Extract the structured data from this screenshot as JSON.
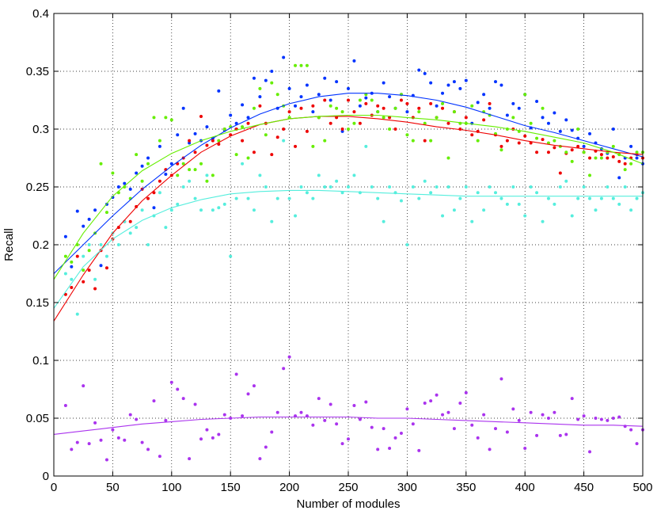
{
  "chart_data": {
    "type": "scatter",
    "title": "",
    "xlabel": "Number of modules",
    "ylabel": "Recall",
    "xlim": [
      0,
      500
    ],
    "ylim": [
      0,
      0.4
    ],
    "xticks": [
      "0",
      "50",
      "100",
      "150",
      "200",
      "250",
      "300",
      "350",
      "400",
      "450",
      "500"
    ],
    "yticks": [
      "0",
      "0.05",
      "0.1",
      "0.15",
      "0.2",
      "0.25",
      "0.3",
      "0.35",
      "0.4"
    ],
    "grid": true,
    "x": [
      10,
      15,
      20,
      25,
      30,
      35,
      40,
      45,
      50,
      55,
      60,
      65,
      70,
      75,
      80,
      85,
      90,
      95,
      100,
      105,
      110,
      115,
      120,
      125,
      130,
      135,
      140,
      145,
      150,
      155,
      160,
      165,
      170,
      175,
      180,
      185,
      190,
      195,
      200,
      205,
      210,
      215,
      220,
      225,
      230,
      235,
      240,
      245,
      250,
      255,
      260,
      265,
      270,
      275,
      280,
      285,
      290,
      295,
      300,
      305,
      310,
      315,
      320,
      325,
      330,
      335,
      340,
      345,
      350,
      355,
      360,
      365,
      370,
      375,
      380,
      385,
      390,
      395,
      400,
      405,
      410,
      415,
      420,
      425,
      430,
      435,
      440,
      445,
      450,
      455,
      460,
      465,
      470,
      475,
      480,
      485,
      490,
      495,
      500
    ],
    "series": [
      {
        "color": "#0033ff",
        "values": [
          0.207,
          0.181,
          0.229,
          0.216,
          0.222,
          0.23,
          0.182,
          0.235,
          0.241,
          0.25,
          0.253,
          0.248,
          0.262,
          0.268,
          0.275,
          0.232,
          0.285,
          0.261,
          0.27,
          0.295,
          0.318,
          0.288,
          0.296,
          0.29,
          0.302,
          0.292,
          0.333,
          0.299,
          0.312,
          0.305,
          0.321,
          0.31,
          0.344,
          0.328,
          0.342,
          0.35,
          0.318,
          0.362,
          0.335,
          0.32,
          0.328,
          0.338,
          0.315,
          0.33,
          0.344,
          0.325,
          0.341,
          0.298,
          0.335,
          0.359,
          0.32,
          0.327,
          0.331,
          0.315,
          0.34,
          0.328,
          0.318,
          0.33,
          0.315,
          0.329,
          0.351,
          0.348,
          0.34,
          0.32,
          0.331,
          0.338,
          0.341,
          0.335,
          0.342,
          0.305,
          0.323,
          0.33,
          0.318,
          0.341,
          0.338,
          0.312,
          0.322,
          0.318,
          0.33,
          0.301,
          0.324,
          0.31,
          0.305,
          0.314,
          0.298,
          0.308,
          0.299,
          0.292,
          0.285,
          0.296,
          0.288,
          0.283,
          0.279,
          0.3,
          0.258,
          0.275,
          0.285,
          0.275,
          0.27
        ]
      },
      {
        "color": "#ee0000",
        "values": [
          0.157,
          0.163,
          0.19,
          0.168,
          0.178,
          0.162,
          0.195,
          0.18,
          0.205,
          0.215,
          0.22,
          0.22,
          0.233,
          0.248,
          0.24,
          0.245,
          0.255,
          0.265,
          0.26,
          0.27,
          0.275,
          0.29,
          0.28,
          0.311,
          0.286,
          0.29,
          0.287,
          0.3,
          0.295,
          0.3,
          0.29,
          0.305,
          0.28,
          0.32,
          0.305,
          0.278,
          0.293,
          0.3,
          0.315,
          0.285,
          0.318,
          0.298,
          0.32,
          0.31,
          0.325,
          0.305,
          0.31,
          0.3,
          0.325,
          0.315,
          0.305,
          0.322,
          0.312,
          0.32,
          0.318,
          0.31,
          0.3,
          0.325,
          0.322,
          0.31,
          0.318,
          0.29,
          0.322,
          0.31,
          0.318,
          0.305,
          0.315,
          0.3,
          0.31,
          0.295,
          0.298,
          0.308,
          0.322,
          0.295,
          0.285,
          0.29,
          0.3,
          0.288,
          0.294,
          0.288,
          0.28,
          0.291,
          0.28,
          0.284,
          0.262,
          0.279,
          0.282,
          0.285,
          0.28,
          0.275,
          0.281,
          0.278,
          0.275,
          0.276,
          0.272,
          0.27,
          0.275,
          0.278,
          0.275
        ]
      },
      {
        "color": "#66ee00",
        "values": [
          0.19,
          0.185,
          0.2,
          0.178,
          0.195,
          0.21,
          0.27,
          0.228,
          0.262,
          0.245,
          0.25,
          0.24,
          0.278,
          0.255,
          0.27,
          0.31,
          0.29,
          0.31,
          0.308,
          0.26,
          0.27,
          0.265,
          0.265,
          0.27,
          0.255,
          0.26,
          0.29,
          0.3,
          0.302,
          0.278,
          0.302,
          0.275,
          0.318,
          0.335,
          0.295,
          0.34,
          0.33,
          0.32,
          0.31,
          0.355,
          0.355,
          0.355,
          0.285,
          0.31,
          0.29,
          0.32,
          0.318,
          0.315,
          0.3,
          0.305,
          0.325,
          0.33,
          0.325,
          0.315,
          0.31,
          0.3,
          0.318,
          0.33,
          0.295,
          0.29,
          0.315,
          0.305,
          0.29,
          0.31,
          0.322,
          0.275,
          0.315,
          0.305,
          0.305,
          0.32,
          0.29,
          0.315,
          0.312,
          0.296,
          0.282,
          0.3,
          0.31,
          0.298,
          0.33,
          0.305,
          0.292,
          0.318,
          0.288,
          0.29,
          0.285,
          0.28,
          0.272,
          0.3,
          0.28,
          0.26,
          0.275,
          0.275,
          0.28,
          0.285,
          0.278,
          0.265,
          0.27,
          0.28,
          0.28
        ]
      },
      {
        "color": "#55eedd",
        "values": [
          0.175,
          0.17,
          0.14,
          0.19,
          0.2,
          0.17,
          0.2,
          0.19,
          0.21,
          0.2,
          0.22,
          0.21,
          0.215,
          0.23,
          0.2,
          0.225,
          0.245,
          0.215,
          0.23,
          0.235,
          0.25,
          0.255,
          0.24,
          0.23,
          0.26,
          0.23,
          0.232,
          0.235,
          0.19,
          0.24,
          0.27,
          0.24,
          0.23,
          0.26,
          0.25,
          0.22,
          0.24,
          0.29,
          0.24,
          0.225,
          0.25,
          0.245,
          0.24,
          0.26,
          0.25,
          0.25,
          0.255,
          0.245,
          0.25,
          0.26,
          0.245,
          0.285,
          0.25,
          0.24,
          0.22,
          0.25,
          0.245,
          0.238,
          0.2,
          0.25,
          0.24,
          0.255,
          0.245,
          0.25,
          0.225,
          0.25,
          0.23,
          0.24,
          0.25,
          0.22,
          0.245,
          0.23,
          0.25,
          0.245,
          0.24,
          0.235,
          0.25,
          0.235,
          0.225,
          0.25,
          0.245,
          0.22,
          0.24,
          0.235,
          0.25,
          0.255,
          0.225,
          0.24,
          0.25,
          0.24,
          0.23,
          0.24,
          0.25,
          0.24,
          0.235,
          0.25,
          0.23,
          0.24,
          0.245
        ]
      },
      {
        "color": "#aa33ee",
        "values": [
          0.061,
          0.023,
          0.029,
          0.078,
          0.028,
          0.046,
          0.031,
          0.014,
          0.04,
          0.033,
          0.031,
          0.053,
          0.049,
          0.029,
          0.023,
          0.065,
          0.017,
          0.048,
          0.081,
          0.075,
          0.067,
          0.015,
          0.062,
          0.032,
          0.04,
          0.033,
          0.036,
          0.053,
          0.05,
          0.088,
          0.052,
          0.071,
          0.078,
          0.015,
          0.025,
          0.038,
          0.055,
          0.093,
          0.103,
          0.052,
          0.055,
          0.052,
          0.044,
          0.067,
          0.048,
          0.062,
          0.045,
          0.028,
          0.032,
          0.061,
          0.049,
          0.064,
          0.042,
          0.023,
          0.041,
          0.024,
          0.033,
          0.037,
          0.058,
          0.045,
          0.022,
          0.063,
          0.065,
          0.07,
          0.053,
          0.055,
          0.041,
          0.063,
          0.072,
          0.044,
          0.033,
          0.053,
          0.023,
          0.041,
          0.084,
          0.038,
          0.058,
          0.048,
          0.024,
          0.055,
          0.035,
          0.053,
          0.05,
          0.055,
          0.035,
          0.036,
          0.067,
          0.049,
          0.052,
          0.021,
          0.05,
          0.049,
          0.048,
          0.05,
          0.051,
          0.043,
          0.04,
          0.028,
          0.04
        ]
      }
    ],
    "fits": [
      {
        "color": "#0033ff",
        "x": [
          0,
          25,
          50,
          75,
          100,
          125,
          150,
          175,
          200,
          225,
          250,
          275,
          300,
          325,
          350,
          375,
          400,
          425,
          450,
          475,
          500
        ],
        "y": [
          0.175,
          0.2,
          0.225,
          0.248,
          0.268,
          0.286,
          0.301,
          0.313,
          0.322,
          0.328,
          0.331,
          0.331,
          0.329,
          0.325,
          0.319,
          0.311,
          0.303,
          0.297,
          0.29,
          0.283,
          0.276
        ]
      },
      {
        "color": "#ee0000",
        "x": [
          0,
          25,
          50,
          75,
          100,
          125,
          150,
          175,
          200,
          225,
          250,
          275,
          300,
          325,
          350,
          375,
          400,
          425,
          450,
          475,
          500
        ],
        "y": [
          0.134,
          0.174,
          0.21,
          0.238,
          0.26,
          0.28,
          0.294,
          0.304,
          0.309,
          0.311,
          0.311,
          0.309,
          0.306,
          0.302,
          0.299,
          0.295,
          0.29,
          0.286,
          0.283,
          0.28,
          0.278
        ]
      },
      {
        "color": "#66ee00",
        "x": [
          0,
          25,
          50,
          75,
          100,
          125,
          150,
          175,
          200,
          225,
          250,
          275,
          300,
          325,
          350,
          375,
          400,
          425,
          450,
          475,
          500
        ],
        "y": [
          0.17,
          0.21,
          0.242,
          0.264,
          0.279,
          0.29,
          0.298,
          0.304,
          0.309,
          0.311,
          0.312,
          0.312,
          0.31,
          0.308,
          0.305,
          0.302,
          0.298,
          0.293,
          0.288,
          0.28,
          0.27
        ]
      },
      {
        "color": "#55eedd",
        "x": [
          0,
          25,
          50,
          75,
          100,
          125,
          150,
          175,
          200,
          225,
          250,
          275,
          300,
          325,
          350,
          375,
          400,
          425,
          450,
          475,
          500
        ],
        "y": [
          0.145,
          0.181,
          0.205,
          0.221,
          0.232,
          0.239,
          0.244,
          0.246,
          0.247,
          0.247,
          0.246,
          0.245,
          0.244,
          0.243,
          0.242,
          0.242,
          0.242,
          0.242,
          0.242,
          0.242,
          0.242
        ]
      },
      {
        "color": "#aa33ee",
        "x": [
          0,
          25,
          50,
          75,
          100,
          125,
          150,
          175,
          200,
          225,
          250,
          275,
          300,
          325,
          350,
          375,
          400,
          425,
          450,
          475,
          500
        ],
        "y": [
          0.036,
          0.039,
          0.042,
          0.045,
          0.047,
          0.049,
          0.05,
          0.051,
          0.051,
          0.051,
          0.051,
          0.05,
          0.05,
          0.049,
          0.048,
          0.047,
          0.046,
          0.045,
          0.044,
          0.044,
          0.043
        ]
      }
    ]
  }
}
